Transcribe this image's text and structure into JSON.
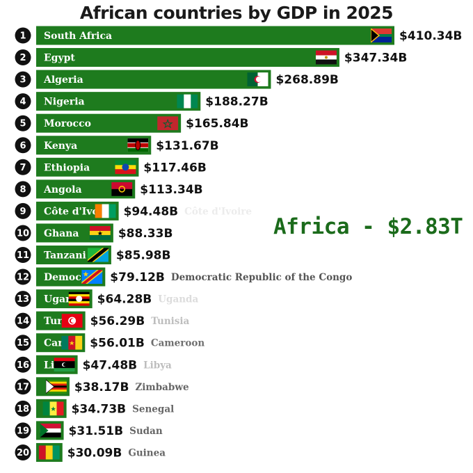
{
  "chart_data": {
    "type": "bar",
    "orientation": "horizontal",
    "title": "African countries by GDP in 2025",
    "annotation": "Africa - $2.83T",
    "unit": "USD billions",
    "bar_color": "#1e7b1e",
    "bars": [
      {
        "rank": "1",
        "label": "South Africa",
        "value": 410.34,
        "value_label": "$410.34B",
        "flag": "flag-south-africa"
      },
      {
        "rank": "2",
        "label": "Egypt",
        "value": 347.34,
        "value_label": "$347.34B",
        "flag": "flag-egypt"
      },
      {
        "rank": "3",
        "label": "Algeria",
        "value": 268.89,
        "value_label": "$268.89B",
        "flag": "flag-algeria"
      },
      {
        "rank": "4",
        "label": "Nigeria",
        "value": 188.27,
        "value_label": "$188.27B",
        "flag": "flag-nigeria"
      },
      {
        "rank": "5",
        "label": "Morocco",
        "value": 165.84,
        "value_label": "$165.84B",
        "flag": "flag-morocco"
      },
      {
        "rank": "6",
        "label": "Kenya",
        "value": 131.67,
        "value_label": "$131.67B",
        "flag": "flag-kenya"
      },
      {
        "rank": "7",
        "label": "Ethiopia",
        "value": 117.46,
        "value_label": "$117.46B",
        "flag": "flag-ethiopia"
      },
      {
        "rank": "8",
        "label": "Angola",
        "value": 113.34,
        "value_label": "$113.34B",
        "flag": "flag-angola"
      },
      {
        "rank": "9",
        "label": "Côte d'Ivo",
        "side_label": "Côte d'Ivoire",
        "side_color": "#ececec",
        "value": 94.48,
        "value_label": "$94.48B",
        "flag": "flag-cote-divoire"
      },
      {
        "rank": "10",
        "label": "Ghana",
        "value": 88.33,
        "value_label": "$88.33B",
        "flag": "flag-ghana"
      },
      {
        "rank": "11",
        "label": "Tanzani",
        "value": 85.98,
        "value_label": "$85.98B",
        "flag": "flag-tanzania"
      },
      {
        "rank": "12",
        "label": "Democ",
        "side_label": "Democratic Republic of the Congo",
        "side_color": "#555555",
        "value": 79.12,
        "value_label": "$79.12B",
        "flag": "flag-dr-congo"
      },
      {
        "rank": "13",
        "label": "Ugar",
        "side_label": "Uganda",
        "side_color": "#dcdcdc",
        "value": 64.28,
        "value_label": "$64.28B",
        "flag": "flag-uganda"
      },
      {
        "rank": "14",
        "label": "Tur",
        "side_label": "Tunisia",
        "side_color": "#bdbdbd",
        "value": 56.29,
        "value_label": "$56.29B",
        "flag": "flag-tunisia"
      },
      {
        "rank": "15",
        "label": "Car",
        "side_label": "Cameroon",
        "side_color": "#6f6f6f",
        "value": 56.01,
        "value_label": "$56.01B",
        "flag": "flag-cameroon"
      },
      {
        "rank": "16",
        "label": "Li",
        "side_label": "Libya",
        "side_color": "#bdbdbd",
        "value": 47.48,
        "value_label": "$47.48B",
        "flag": "flag-libya"
      },
      {
        "rank": "17",
        "label": "",
        "side_label": "Zimbabwe",
        "side_color": "#666666",
        "value": 38.17,
        "value_label": "$38.17B",
        "flag": "flag-zimbabwe"
      },
      {
        "rank": "18",
        "label": "",
        "side_label": "Senegal",
        "side_color": "#666666",
        "value": 34.73,
        "value_label": "$34.73B",
        "flag": "flag-senegal"
      },
      {
        "rank": "19",
        "label": "",
        "side_label": "Sudan",
        "side_color": "#666666",
        "value": 31.51,
        "value_label": "$31.51B",
        "flag": "flag-sudan"
      },
      {
        "rank": "20",
        "label": "",
        "side_label": "Guinea",
        "side_color": "#666666",
        "value": 30.09,
        "value_label": "$30.09B",
        "flag": "flag-guinea"
      }
    ]
  }
}
